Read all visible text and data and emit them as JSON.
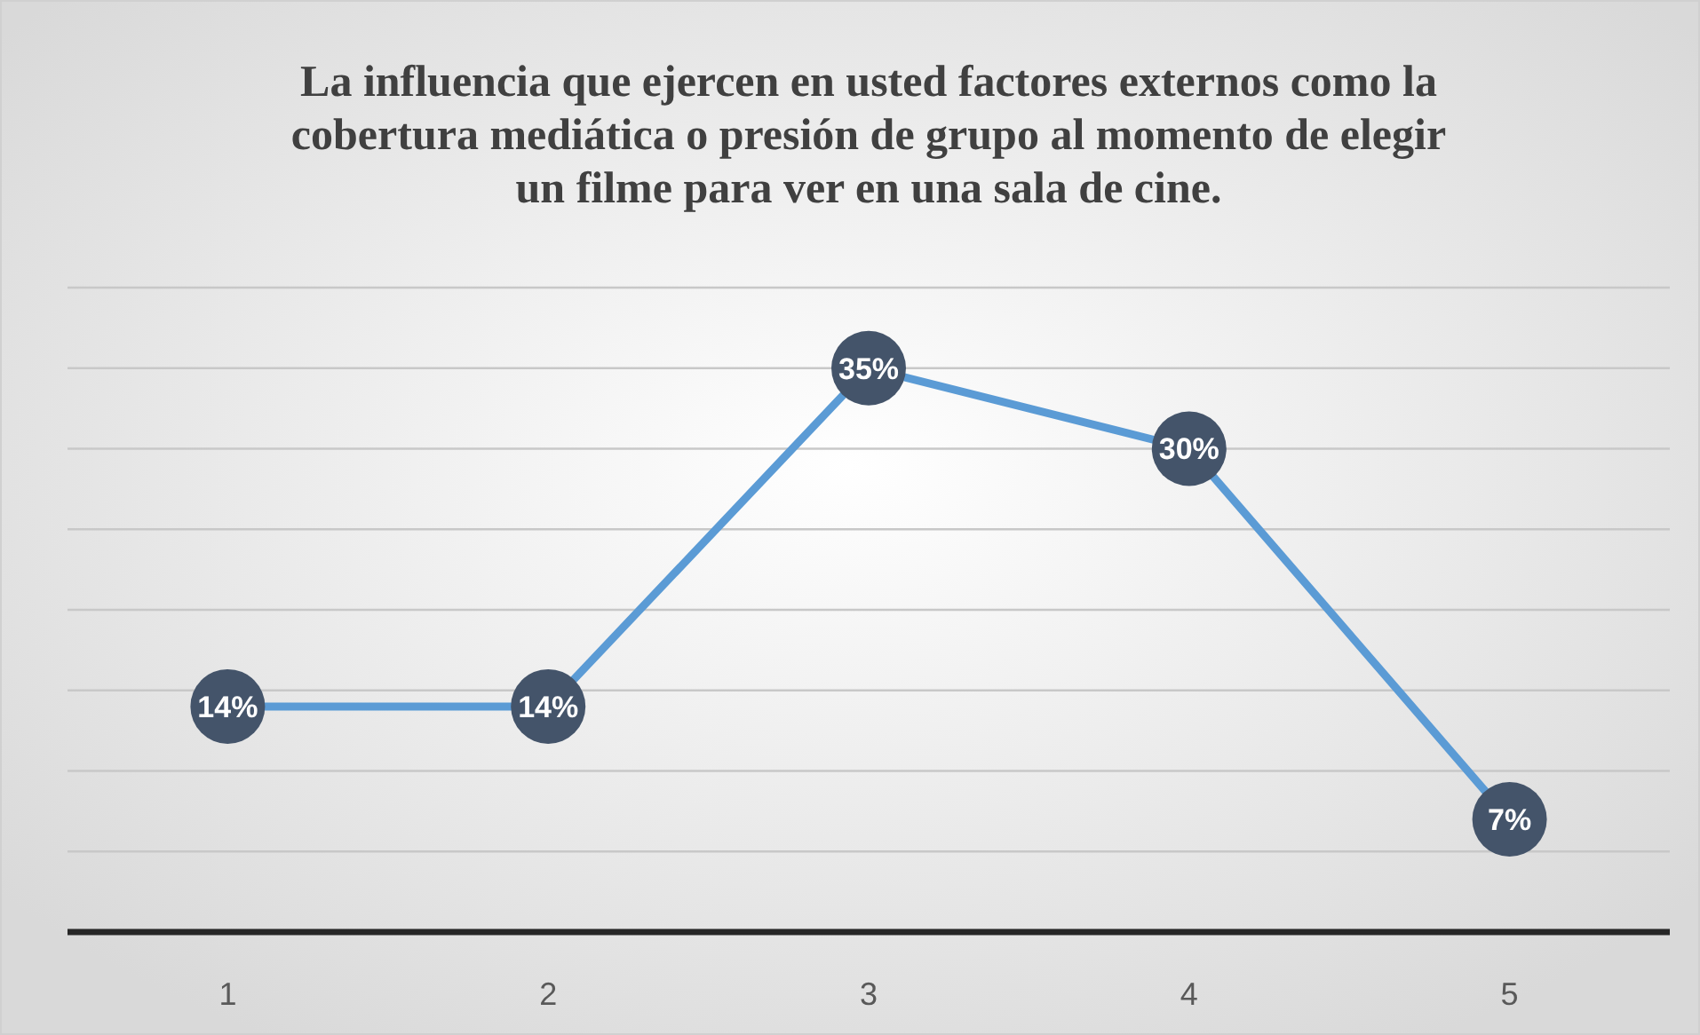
{
  "chart_data": {
    "type": "line",
    "title": "La influencia que ejercen en usted factores externos como la cobertura mediática o presión de grupo al momento de elegir un filme para ver en una sala de cine.",
    "categories": [
      "1",
      "2",
      "3",
      "4",
      "5"
    ],
    "series": [
      {
        "color": "#5b9bd5",
        "values": [
          14,
          14,
          35,
          30,
          7
        ],
        "value_labels": [
          "14%",
          "14%",
          "35%",
          "30%",
          "7%"
        ]
      }
    ],
    "ylim": [
      0,
      40
    ],
    "yticks": [
      {
        "value": 0,
        "label": null
      },
      {
        "value": 5,
        "label": null
      },
      {
        "value": 10,
        "label": null
      },
      {
        "value": 15,
        "label": null
      },
      {
        "value": 20,
        "label": null
      },
      {
        "value": 25,
        "label": null
      },
      {
        "value": 30,
        "label": null
      },
      {
        "value": 35,
        "label": null
      },
      {
        "value": 40,
        "label": null
      }
    ],
    "tick_labels": "x",
    "grid": "y",
    "marker": "circle",
    "line_style": "solid"
  }
}
